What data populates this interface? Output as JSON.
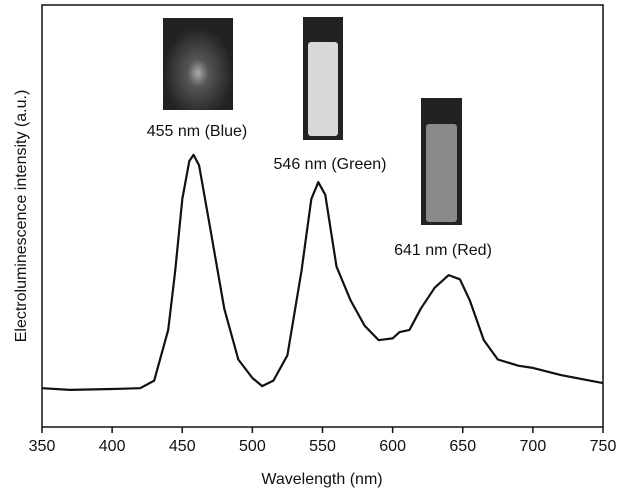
{
  "chart_data": {
    "type": "line",
    "x_label": "Wavelength (nm)",
    "y_label": "Electroluminescence intensity (a.u.)",
    "annotations": [
      "455 nm (Blue)",
      "546 nm (Green)",
      "641 nm (Red)"
    ],
    "x": [
      350,
      370,
      400,
      420,
      430,
      440,
      445,
      450,
      455,
      458,
      462,
      470,
      480,
      490,
      500,
      507,
      515,
      525,
      535,
      542,
      547,
      552,
      560,
      570,
      580,
      590,
      600,
      605,
      612,
      620,
      630,
      640,
      648,
      655,
      665,
      675,
      690,
      700,
      720,
      750
    ],
    "series": [
      {
        "color": "#111111",
        "values": [
          9.2,
          8.8,
          9.0,
          9.2,
          11,
          23,
          37,
          54,
          63,
          64.5,
          62,
          47,
          28,
          16,
          11.6,
          9.7,
          11,
          17,
          37,
          54,
          58,
          55,
          38,
          30,
          24,
          20.6,
          21,
          22.5,
          23,
          28,
          33,
          36,
          35,
          30,
          20.6,
          16,
          14.5,
          14,
          12.3,
          10.4
        ]
      }
    ],
    "xlim": [
      350,
      750
    ],
    "ylim": [
      0,
      100
    ],
    "xticks": [
      350,
      400,
      450,
      500,
      550,
      600,
      650,
      700,
      750
    ]
  }
}
